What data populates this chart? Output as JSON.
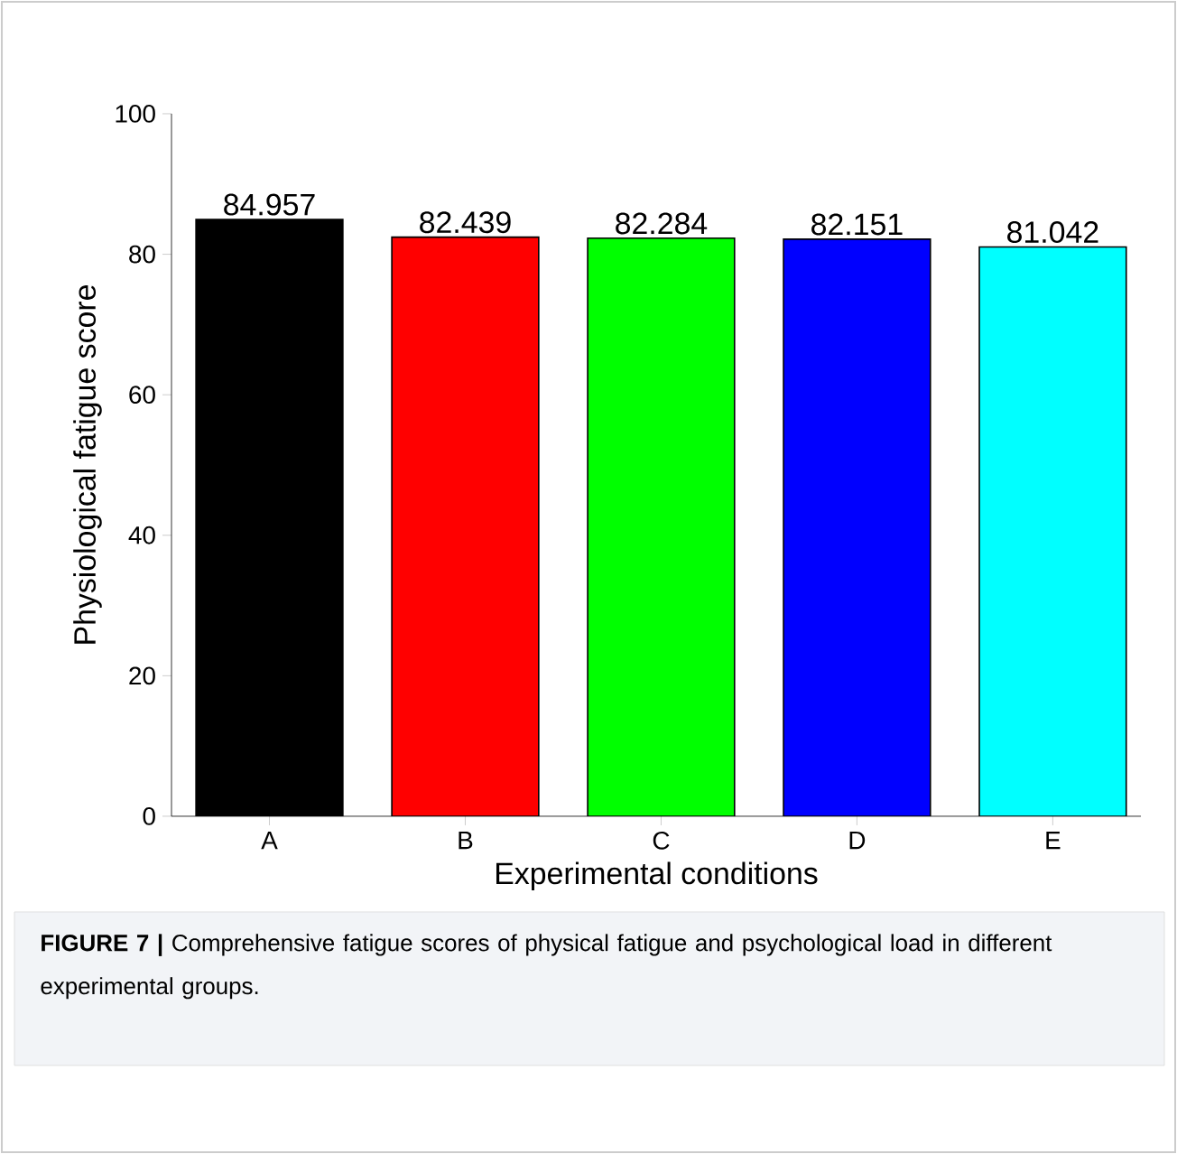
{
  "chart_data": {
    "type": "bar",
    "xlabel": "Experimental conditions",
    "ylabel": "Physiological fatigue score",
    "categories": [
      "A",
      "B",
      "C",
      "D",
      "E"
    ],
    "values": [
      84.957,
      82.439,
      82.284,
      82.151,
      81.042
    ],
    "value_labels": [
      "84.957",
      "82.439",
      "82.284",
      "82.151",
      "81.042"
    ],
    "colors": [
      "#000000",
      "#ff0000",
      "#00ff00",
      "#0000ff",
      "#00ffff"
    ],
    "ylim": [
      0,
      100
    ],
    "yticks": [
      0,
      20,
      40,
      60,
      80,
      100
    ],
    "annotations": [
      "**FIGURE 7 |** Comprehensive fatigue scores of physical fatigue and psychological load in different experimental groups."
    ]
  }
}
